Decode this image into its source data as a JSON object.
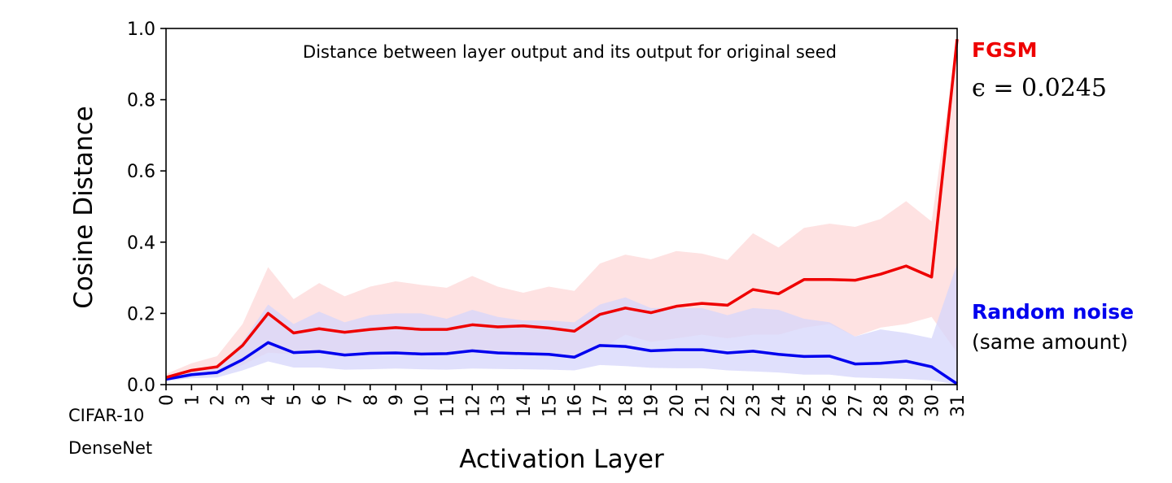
{
  "chart_data": {
    "type": "line",
    "title": "Distance between layer output and its output for original seed",
    "xlabel": "Activation Layer",
    "ylabel": "Cosine Distance",
    "xlim": [
      0,
      31
    ],
    "ylim": [
      0,
      1.0
    ],
    "yticks": [
      "0.0",
      "0.2",
      "0.4",
      "0.6",
      "0.8",
      "1.0"
    ],
    "x": [
      0,
      1,
      2,
      3,
      4,
      5,
      6,
      7,
      8,
      9,
      10,
      11,
      12,
      13,
      14,
      15,
      16,
      17,
      18,
      19,
      20,
      21,
      22,
      23,
      24,
      25,
      26,
      27,
      28,
      29,
      30,
      31
    ],
    "dataset_label": [
      "CIFAR-10",
      "DenseNet"
    ],
    "series": [
      {
        "name": "FGSM",
        "subtitle": "ϵ = 0.0245",
        "color": "#ee0000",
        "band_color": "#fdd8d8",
        "values": [
          0.02,
          0.04,
          0.05,
          0.11,
          0.2,
          0.145,
          0.157,
          0.147,
          0.155,
          0.16,
          0.155,
          0.155,
          0.168,
          0.162,
          0.165,
          0.159,
          0.15,
          0.197,
          0.215,
          0.202,
          0.22,
          0.228,
          0.223,
          0.267,
          0.255,
          0.295,
          0.295,
          0.293,
          0.31,
          0.333,
          0.302,
          0.97
        ],
        "upper": [
          0.03,
          0.06,
          0.08,
          0.17,
          0.33,
          0.24,
          0.285,
          0.248,
          0.275,
          0.29,
          0.28,
          0.272,
          0.305,
          0.275,
          0.258,
          0.275,
          0.263,
          0.34,
          0.365,
          0.352,
          0.375,
          0.368,
          0.35,
          0.425,
          0.385,
          0.44,
          0.452,
          0.443,
          0.465,
          0.515,
          0.458,
          0.97
        ],
        "lower": [
          0.012,
          0.022,
          0.028,
          0.055,
          0.09,
          0.085,
          0.09,
          0.08,
          0.085,
          0.09,
          0.085,
          0.09,
          0.095,
          0.09,
          0.09,
          0.085,
          0.08,
          0.1,
          0.14,
          0.12,
          0.13,
          0.14,
          0.13,
          0.14,
          0.14,
          0.16,
          0.17,
          0.135,
          0.16,
          0.17,
          0.19,
          0.09
        ]
      },
      {
        "name": "Random noise",
        "subtitle": "(same amount)",
        "color": "#0000ee",
        "band_color": "#d6d6fb",
        "values": [
          0.015,
          0.028,
          0.034,
          0.07,
          0.118,
          0.09,
          0.093,
          0.083,
          0.088,
          0.089,
          0.086,
          0.087,
          0.095,
          0.089,
          0.087,
          0.085,
          0.077,
          0.11,
          0.107,
          0.095,
          0.098,
          0.098,
          0.089,
          0.094,
          0.085,
          0.079,
          0.08,
          0.058,
          0.06,
          0.066,
          0.05,
          0.002
        ],
        "upper": [
          0.022,
          0.04,
          0.05,
          0.12,
          0.225,
          0.17,
          0.205,
          0.175,
          0.195,
          0.2,
          0.2,
          0.185,
          0.21,
          0.19,
          0.18,
          0.18,
          0.175,
          0.225,
          0.245,
          0.215,
          0.215,
          0.215,
          0.195,
          0.215,
          0.21,
          0.185,
          0.175,
          0.135,
          0.155,
          0.145,
          0.13,
          0.34
        ],
        "lower": [
          0.01,
          0.018,
          0.02,
          0.04,
          0.065,
          0.048,
          0.048,
          0.042,
          0.043,
          0.045,
          0.043,
          0.042,
          0.045,
          0.044,
          0.043,
          0.042,
          0.04,
          0.055,
          0.052,
          0.047,
          0.046,
          0.046,
          0.04,
          0.037,
          0.034,
          0.028,
          0.028,
          0.02,
          0.018,
          0.016,
          0.012,
          0.0
        ]
      }
    ]
  }
}
